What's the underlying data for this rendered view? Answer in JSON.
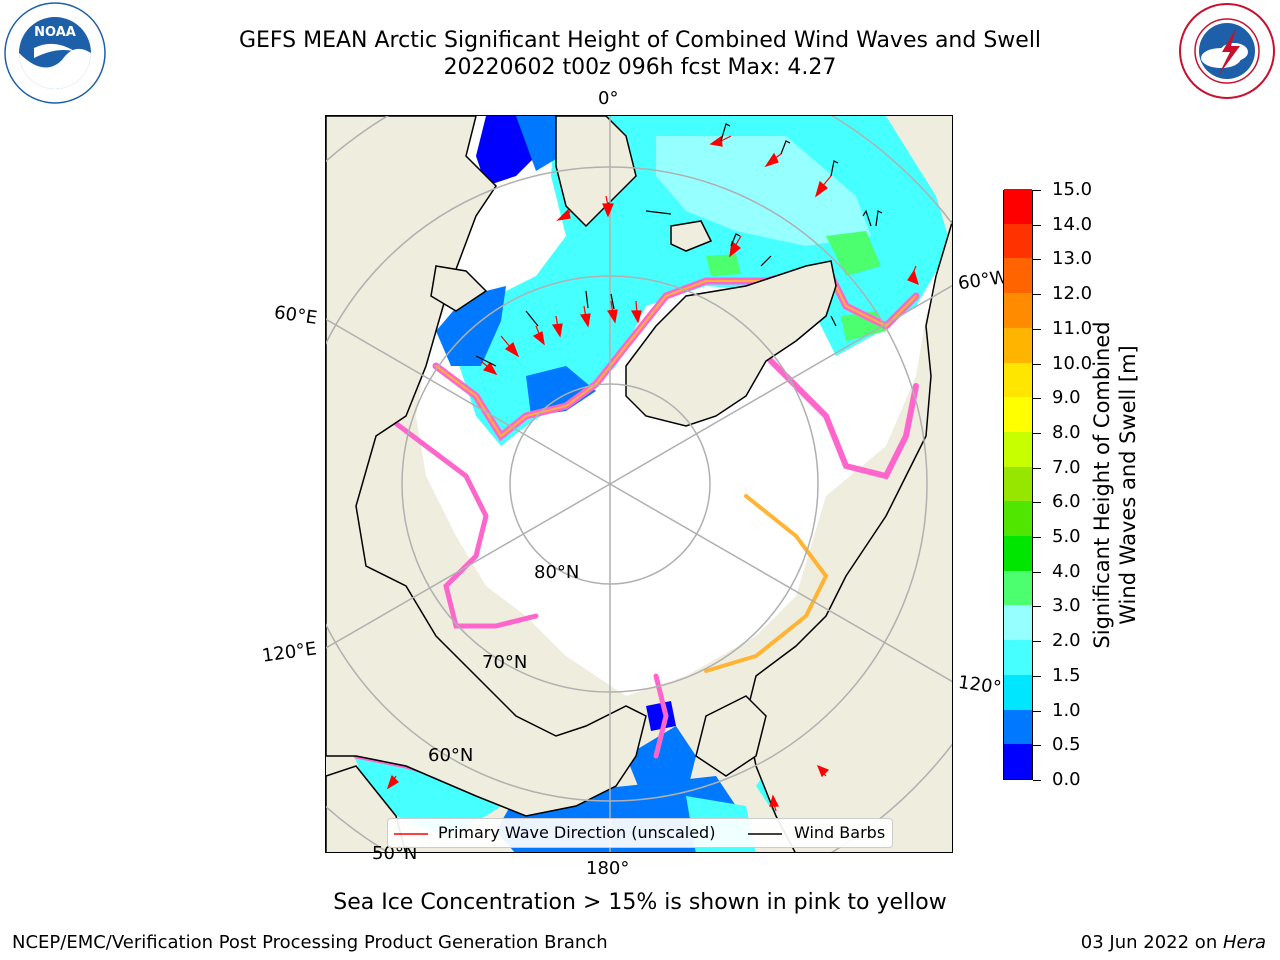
{
  "header": {
    "title_line1": "GEFS MEAN Arctic Significant Height of Combined Wind Waves and Swell",
    "title_line2": "20220602 t00z 096h fcst   Max: 4.27"
  },
  "logos": {
    "noaa": {
      "text": "NOAA",
      "icon": "noaa-logo-icon",
      "color": "#1d5fa8"
    },
    "nws": {
      "icon": "nws-logo-icon",
      "color": "#c8102e"
    }
  },
  "map": {
    "projection": "north-polar-stereographic",
    "labels": {
      "lon_0": "0°",
      "lon_60w": "60°W",
      "lon_60e": "60°E",
      "lon_120e": "120°E",
      "lon_120w": "120°W",
      "lon_180": "180°",
      "lat_80": "80°N",
      "lat_70": "70°N",
      "lat_60": "60°N",
      "lat_50": "50°N"
    },
    "colors": {
      "land": "#efedde",
      "ocean_ice": "#ffffff",
      "gridline": "#b0b0b0"
    }
  },
  "colorbar": {
    "label_line1": "Significant Height of Combined",
    "label_line2": "Wind Waves and Swell [m]",
    "ticks": [
      "0.0",
      "0.5",
      "1.0",
      "1.5",
      "2.0",
      "3.0",
      "4.0",
      "5.0",
      "6.0",
      "7.0",
      "8.0",
      "9.0",
      "10.0",
      "11.0",
      "12.0",
      "13.0",
      "14.0",
      "15.0"
    ],
    "colors": [
      "#0000ff",
      "#0078ff",
      "#00e6ff",
      "#46ffff",
      "#96ffff",
      "#4bff6e",
      "#00e600",
      "#50e600",
      "#96e600",
      "#c8ff00",
      "#ffff00",
      "#ffe600",
      "#ffb400",
      "#ff8c00",
      "#ff6400",
      "#ff3200",
      "#ff0000"
    ]
  },
  "legend": {
    "items": [
      {
        "label": "Primary Wave Direction (unscaled)",
        "color": "#ff0000"
      },
      {
        "label": "Wind Barbs",
        "color": "#000000"
      }
    ]
  },
  "footer": {
    "ice_note": "Sea Ice Concentration > 15% is shown in pink to yellow",
    "credit": "NCEP/EMC/Verification Post Processing Product Generation Branch",
    "rundate_prefix": "03 Jun 2022 on ",
    "rundate_machine": "Hera"
  }
}
